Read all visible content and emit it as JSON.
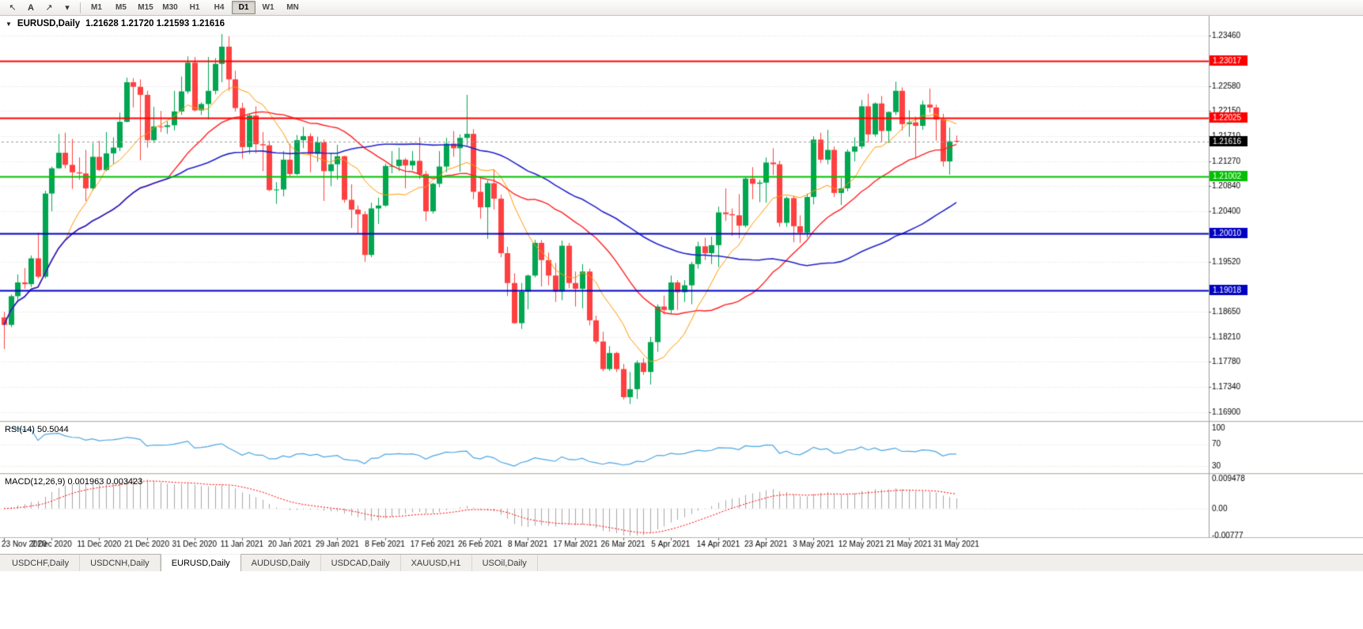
{
  "toolbar": {
    "tools": [
      {
        "name": "cursor-tool",
        "glyph": "↖"
      },
      {
        "name": "text-tool",
        "glyph": "A"
      },
      {
        "name": "trendline-tool",
        "glyph": "↗"
      },
      {
        "name": "tools-dropdown",
        "glyph": "▾"
      }
    ],
    "timeframes": [
      "M1",
      "M5",
      "M15",
      "M30",
      "H1",
      "H4",
      "D1",
      "W1",
      "MN"
    ],
    "active_timeframe": "D1"
  },
  "chart_header": {
    "dropdown_icon": "▼",
    "symbol_label": "EURUSD,Daily",
    "ohlc_text": "1.21628 1.21720 1.21593 1.21616"
  },
  "chart_data": {
    "type": "candlestick",
    "symbol": "EURUSD",
    "timeframe": "Daily",
    "title": "EURUSD,Daily",
    "current_bar": {
      "open": 1.21628,
      "high": 1.2172,
      "low": 1.21593,
      "close": 1.21616
    },
    "current_price": 1.21616,
    "current_price_label": "1.21616",
    "price_range": [
      1.1676,
      1.2378
    ],
    "colors": {
      "bull": "#00A651",
      "bear": "#FF4040",
      "background": "#FFFFFF",
      "grid": "#DCDCDC"
    },
    "y_ticks": [
      "1.23460",
      "1.22580",
      "1.22150",
      "1.21710",
      "1.21270",
      "1.20840",
      "1.20400",
      "1.19520",
      "1.18650",
      "1.18210",
      "1.17780",
      "1.17340",
      "1.16900"
    ],
    "x_tick_step": 7,
    "x_ticks": [
      "23 Nov 2020",
      "2 Dec 2020",
      "11 Dec 2020",
      "21 Dec 2020",
      "31 Dec 2020",
      "11 Jan 2021",
      "20 Jan 2021",
      "29 Jan 2021",
      "8 Feb 2021",
      "17 Feb 2021",
      "26 Feb 2021",
      "8 Mar 2021",
      "17 Mar 2021",
      "26 Mar 2021",
      "5 Apr 2021",
      "14 Apr 2021",
      "23 Apr 2021",
      "3 May 2021",
      "12 May 2021",
      "21 May 2021",
      "31 May 2021"
    ],
    "moving_averages": [
      {
        "period": 10,
        "color": "#FF9900",
        "width": 1
      },
      {
        "period": 25,
        "color": "#FF2020",
        "width": 1.4
      },
      {
        "period": 50,
        "color": "#2222CC",
        "width": 1.6
      }
    ],
    "hlines": [
      {
        "price": 1.23017,
        "label": "1.23017",
        "color": "#FF0000",
        "width": 2
      },
      {
        "price": 1.22025,
        "label": "1.22025",
        "color": "#FF0000",
        "width": 2
      },
      {
        "price": 1.21002,
        "label": "1.21002",
        "color": "#00C000",
        "width": 2
      },
      {
        "price": 1.2001,
        "label": "1.20010",
        "color": "#0000C0",
        "width": 2
      },
      {
        "price": 1.19018,
        "label": "1.19018",
        "color": "#0000C0",
        "width": 2
      }
    ],
    "rsi": {
      "label": "RSI(14) 50.5044",
      "period": 14,
      "value": 50.5044,
      "color": "#4DA6E0",
      "levels": [
        70,
        30
      ],
      "ticks": [
        {
          "label": "100",
          "value": 100
        },
        {
          "label": "70",
          "value": 70
        },
        {
          "label": "30",
          "value": 30
        }
      ],
      "scale_min": 18,
      "scale_max": 109
    },
    "macd": {
      "label": "MACD(12,26,9) 0.001963 0.003423",
      "fast": 12,
      "slow": 26,
      "signal": 9,
      "macd_value": 0.001963,
      "signal_value": 0.003423,
      "histogram_color": "#A6A6A6",
      "signal_color": "#FF0000",
      "ticks": [
        {
          "label": "0.009478",
          "value": 0.009478
        },
        {
          "label": "0.00",
          "value": 0
        },
        {
          "label": "-0.00777",
          "value": -0.00777
        }
      ],
      "scale_min": -0.00777,
      "scale_max": 0.009478
    },
    "candles": [
      [
        1.1855,
        1.1865,
        1.18,
        1.1842
      ],
      [
        1.1842,
        1.1895,
        1.1838,
        1.1892
      ],
      [
        1.1892,
        1.193,
        1.1881,
        1.1916
      ],
      [
        1.1916,
        1.1941,
        1.1905,
        1.1913
      ],
      [
        1.1913,
        1.1963,
        1.1908,
        1.1958
      ],
      [
        1.1958,
        1.2003,
        1.1923,
        1.1926
      ],
      [
        1.1926,
        1.2076,
        1.1923,
        1.2071
      ],
      [
        1.2071,
        1.2118,
        1.204,
        1.2115
      ],
      [
        1.2115,
        1.2175,
        1.2114,
        1.2142
      ],
      [
        1.2142,
        1.2177,
        1.2115,
        1.2121
      ],
      [
        1.2121,
        1.2166,
        1.2079,
        1.2108
      ],
      [
        1.2108,
        1.2134,
        1.2095,
        1.2106
      ],
      [
        1.2106,
        1.2147,
        1.2058,
        1.208
      ],
      [
        1.208,
        1.2159,
        1.2076,
        1.2135
      ],
      [
        1.2135,
        1.2163,
        1.211,
        1.2112
      ],
      [
        1.2112,
        1.2178,
        1.211,
        1.2141
      ],
      [
        1.2141,
        1.2169,
        1.2123,
        1.2151
      ],
      [
        1.2151,
        1.2212,
        1.2145,
        1.2196
      ],
      [
        1.2196,
        1.2273,
        1.2195,
        1.2265
      ],
      [
        1.2265,
        1.2272,
        1.2221,
        1.2257
      ],
      [
        1.2257,
        1.227,
        1.2129,
        1.2243
      ],
      [
        1.2243,
        1.225,
        1.2151,
        1.2164
      ],
      [
        1.2164,
        1.2222,
        1.2159,
        1.2188
      ],
      [
        1.2188,
        1.2215,
        1.2178,
        1.2187
      ],
      [
        1.2187,
        1.2197,
        1.2175,
        1.219
      ],
      [
        1.219,
        1.225,
        1.2181,
        1.2214
      ],
      [
        1.2214,
        1.2275,
        1.2208,
        1.2249
      ],
      [
        1.2249,
        1.231,
        1.2245,
        1.2299
      ],
      [
        1.2299,
        1.2309,
        1.2214,
        1.2216
      ],
      [
        1.2216,
        1.223,
        1.2208,
        1.2227
      ],
      [
        1.2227,
        1.2309,
        1.22,
        1.225
      ],
      [
        1.225,
        1.2307,
        1.2244,
        1.2297
      ],
      [
        1.2297,
        1.2349,
        1.2265,
        1.2327
      ],
      [
        1.2327,
        1.2345,
        1.225,
        1.227
      ],
      [
        1.227,
        1.2285,
        1.2214,
        1.222
      ],
      [
        1.222,
        1.2229,
        1.2132,
        1.2152
      ],
      [
        1.2152,
        1.221,
        1.214,
        1.2207
      ],
      [
        1.2207,
        1.2223,
        1.2141,
        1.2157
      ],
      [
        1.2157,
        1.2178,
        1.211,
        1.2155
      ],
      [
        1.2155,
        1.2163,
        1.2075,
        1.2077
      ],
      [
        1.2077,
        1.2091,
        1.2053,
        1.2078
      ],
      [
        1.2078,
        1.2145,
        1.2066,
        1.213
      ],
      [
        1.213,
        1.2158,
        1.2101,
        1.2105
      ],
      [
        1.2105,
        1.2173,
        1.2103,
        1.2164
      ],
      [
        1.2164,
        1.2187,
        1.215,
        1.2171
      ],
      [
        1.2171,
        1.2176,
        1.2108,
        1.214
      ],
      [
        1.214,
        1.217,
        1.2126,
        1.216
      ],
      [
        1.216,
        1.2165,
        1.2058,
        1.211
      ],
      [
        1.211,
        1.2142,
        1.2084,
        1.2122
      ],
      [
        1.2122,
        1.2156,
        1.2095,
        1.2136
      ],
      [
        1.2136,
        1.2137,
        1.2055,
        1.206
      ],
      [
        1.206,
        1.2087,
        1.2011,
        1.2043
      ],
      [
        1.2043,
        1.205,
        1.2002,
        1.2035
      ],
      [
        1.2035,
        1.204,
        1.1952,
        1.1964
      ],
      [
        1.1964,
        1.2055,
        1.196,
        1.2045
      ],
      [
        1.2045,
        1.2064,
        1.2018,
        1.205
      ],
      [
        1.205,
        1.2123,
        1.2048,
        1.2119
      ],
      [
        1.2119,
        1.2145,
        1.2106,
        1.2119
      ],
      [
        1.2119,
        1.2151,
        1.211,
        1.213
      ],
      [
        1.213,
        1.2133,
        1.208,
        1.212
      ],
      [
        1.212,
        1.2145,
        1.2112,
        1.2128
      ],
      [
        1.2128,
        1.2169,
        1.2096,
        1.2105
      ],
      [
        1.2105,
        1.211,
        1.2023,
        1.204
      ],
      [
        1.204,
        1.209,
        1.2036,
        1.2088
      ],
      [
        1.2088,
        1.2145,
        1.2082,
        1.2118
      ],
      [
        1.2118,
        1.2168,
        1.2108,
        1.2158
      ],
      [
        1.2158,
        1.218,
        1.2135,
        1.215
      ],
      [
        1.215,
        1.2174,
        1.2109,
        1.2168
      ],
      [
        1.2168,
        1.2243,
        1.2155,
        1.2175
      ],
      [
        1.2175,
        1.2183,
        1.2061,
        1.2074
      ],
      [
        1.2074,
        1.2101,
        1.2027,
        1.2047
      ],
      [
        1.2047,
        1.2094,
        1.1992,
        1.2089
      ],
      [
        1.2089,
        1.2113,
        1.2043,
        1.2062
      ],
      [
        1.2062,
        1.2069,
        1.196,
        1.1967
      ],
      [
        1.1967,
        1.1978,
        1.1892,
        1.1915
      ],
      [
        1.1915,
        1.1932,
        1.1844,
        1.1845
      ],
      [
        1.1845,
        1.1915,
        1.1835,
        1.19
      ],
      [
        1.19,
        1.193,
        1.1869,
        1.1928
      ],
      [
        1.1928,
        1.199,
        1.1925,
        1.1985
      ],
      [
        1.1985,
        1.199,
        1.1909,
        1.1955
      ],
      [
        1.1955,
        1.1968,
        1.1911,
        1.1928
      ],
      [
        1.1928,
        1.195,
        1.1882,
        1.19
      ],
      [
        1.19,
        1.1989,
        1.1885,
        1.198
      ],
      [
        1.198,
        1.1985,
        1.1906,
        1.1915
      ],
      [
        1.1915,
        1.1935,
        1.1874,
        1.1905
      ],
      [
        1.1905,
        1.1948,
        1.1871,
        1.1935
      ],
      [
        1.1935,
        1.194,
        1.1841,
        1.185
      ],
      [
        1.185,
        1.1858,
        1.1809,
        1.1813
      ],
      [
        1.1813,
        1.183,
        1.1761,
        1.1765
      ],
      [
        1.1765,
        1.1805,
        1.1762,
        1.1793
      ],
      [
        1.1793,
        1.1795,
        1.176,
        1.1765
      ],
      [
        1.1765,
        1.1774,
        1.1712,
        1.1716
      ],
      [
        1.1716,
        1.176,
        1.1704,
        1.173
      ],
      [
        1.173,
        1.178,
        1.1713,
        1.1776
      ],
      [
        1.1776,
        1.1784,
        1.1755,
        1.176
      ],
      [
        1.176,
        1.1821,
        1.1738,
        1.1812
      ],
      [
        1.1812,
        1.1878,
        1.1795,
        1.1874
      ],
      [
        1.1874,
        1.1893,
        1.186,
        1.1868
      ],
      [
        1.1868,
        1.1928,
        1.1861,
        1.1916
      ],
      [
        1.1916,
        1.192,
        1.1868,
        1.1899
      ],
      [
        1.1899,
        1.192,
        1.1882,
        1.1911
      ],
      [
        1.1911,
        1.1952,
        1.1878,
        1.1948
      ],
      [
        1.1948,
        1.1987,
        1.194,
        1.1979
      ],
      [
        1.1979,
        1.1994,
        1.1955,
        1.1967
      ],
      [
        1.1967,
        1.1996,
        1.1948,
        1.1981
      ],
      [
        1.1981,
        1.2048,
        1.1943,
        1.2038
      ],
      [
        1.2038,
        1.208,
        1.2023,
        1.2035
      ],
      [
        1.2035,
        1.2045,
        1.1997,
        1.2033
      ],
      [
        1.2033,
        1.207,
        1.1993,
        1.2015
      ],
      [
        1.2015,
        1.21,
        1.2012,
        1.2097
      ],
      [
        1.2097,
        1.2117,
        1.2061,
        1.2088
      ],
      [
        1.2088,
        1.2095,
        1.2056,
        1.209
      ],
      [
        1.209,
        1.2134,
        1.2055,
        1.2125
      ],
      [
        1.2125,
        1.215,
        1.2103,
        1.2122
      ],
      [
        1.2122,
        1.2128,
        1.2013,
        1.202
      ],
      [
        1.202,
        1.2066,
        1.2013,
        1.2063
      ],
      [
        1.2063,
        1.2067,
        1.1986,
        1.2014
      ],
      [
        1.2014,
        1.2033,
        1.1985,
        1.2003
      ],
      [
        1.2003,
        1.2071,
        1.1994,
        1.2065
      ],
      [
        1.2065,
        1.2171,
        1.2052,
        1.2165
      ],
      [
        1.2165,
        1.2177,
        1.2124,
        1.213
      ],
      [
        1.213,
        1.2182,
        1.2122,
        1.2147
      ],
      [
        1.2147,
        1.2153,
        1.2065,
        1.2072
      ],
      [
        1.2072,
        1.2098,
        1.2051,
        1.208
      ],
      [
        1.208,
        1.2148,
        1.2075,
        1.2144
      ],
      [
        1.2144,
        1.2169,
        1.2127,
        1.2153
      ],
      [
        1.2153,
        1.2234,
        1.2149,
        1.2223
      ],
      [
        1.2223,
        1.2245,
        1.216,
        1.2174
      ],
      [
        1.2174,
        1.223,
        1.217,
        1.2228
      ],
      [
        1.2228,
        1.2241,
        1.2161,
        1.218
      ],
      [
        1.218,
        1.2214,
        1.2159,
        1.2213
      ],
      [
        1.2213,
        1.2266,
        1.2208,
        1.225
      ],
      [
        1.225,
        1.2256,
        1.2181,
        1.2192
      ],
      [
        1.2192,
        1.2216,
        1.217,
        1.2195
      ],
      [
        1.2195,
        1.2205,
        1.2132,
        1.2189
      ],
      [
        1.2189,
        1.2233,
        1.2182,
        1.2226
      ],
      [
        1.2226,
        1.2254,
        1.2212,
        1.2221
      ],
      [
        1.2221,
        1.2226,
        1.2163,
        1.22
      ],
      [
        1.22,
        1.221,
        1.2118,
        1.2127
      ],
      [
        1.2127,
        1.2186,
        1.2104,
        1.2162
      ],
      [
        1.21628,
        1.2172,
        1.21593,
        1.21616
      ]
    ]
  },
  "tabbar": {
    "tabs": [
      "USDCHF,Daily",
      "USDCNH,Daily",
      "EURUSD,Daily",
      "AUDUSD,Daily",
      "USDCAD,Daily",
      "XAUUSD,H1",
      "USOil,Daily"
    ],
    "active_index": 2
  }
}
